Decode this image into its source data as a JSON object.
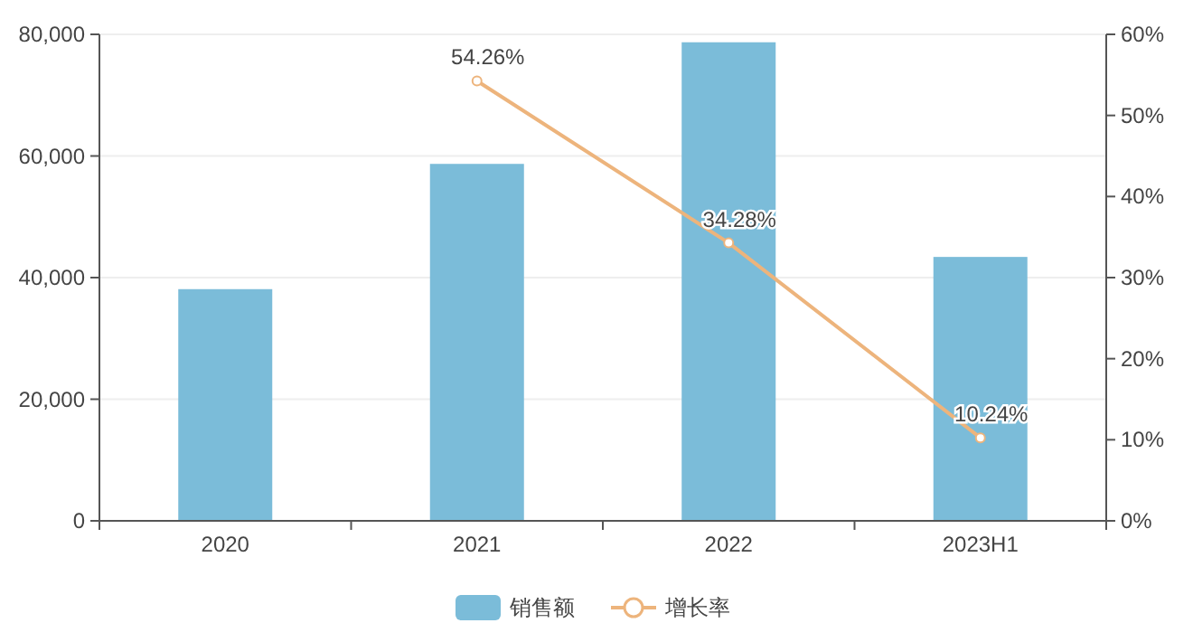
{
  "chart_data": {
    "type": "bar",
    "categories": [
      "2020",
      "2021",
      "2022",
      "2023H1"
    ],
    "series": [
      {
        "name": "销售额",
        "color": "#7bbcd9",
        "values": [
          38100,
          58700,
          78700,
          43400
        ]
      },
      {
        "name": "增长率",
        "type": "line",
        "axis": "y2",
        "color": "#edb47c",
        "marker": "circle",
        "values": [
          null,
          54.26,
          34.28,
          10.24
        ],
        "value_labels": [
          null,
          "54.26%",
          "34.28%",
          "10.24%"
        ]
      }
    ],
    "ylim": [
      0,
      80000
    ],
    "yticks": [
      {
        "value": 0,
        "label": "0"
      },
      {
        "value": 20000,
        "label": "20,000"
      },
      {
        "value": 40000,
        "label": "40,000"
      },
      {
        "value": 60000,
        "label": "60,000"
      },
      {
        "value": 80000,
        "label": "80,000"
      }
    ],
    "y2lim": [
      0,
      60
    ],
    "y2ticks": [
      {
        "value": 0,
        "label": "0%"
      },
      {
        "value": 10,
        "label": "10%"
      },
      {
        "value": 20,
        "label": "20%"
      },
      {
        "value": 30,
        "label": "30%"
      },
      {
        "value": 40,
        "label": "40%"
      },
      {
        "value": 50,
        "label": "50%"
      },
      {
        "value": 60,
        "label": "60%"
      }
    ],
    "grid": "y",
    "legend": "bottom"
  }
}
